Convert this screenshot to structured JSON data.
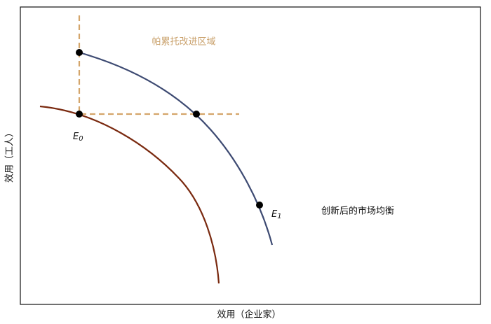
{
  "diagram": {
    "x_axis_label": "效用（企业家）",
    "y_axis_label": "效用（工人）",
    "region_label": "帕累托改进区域",
    "curve_label": "创新后的市场均衡",
    "points": [
      {
        "letter": "E",
        "subscript": "0"
      },
      {
        "letter": "E",
        "subscript": "1"
      }
    ]
  }
}
